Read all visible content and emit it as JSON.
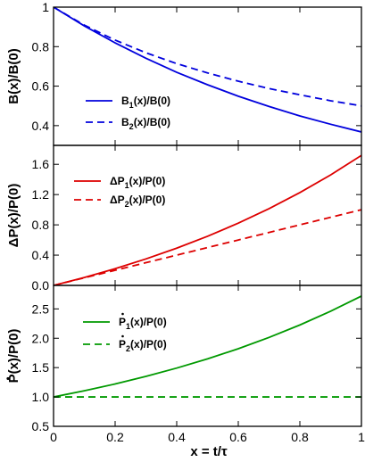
{
  "chart_data": [
    {
      "type": "line",
      "xlabel": "",
      "ylabel": "B(x)/B(0)",
      "xlim": [
        0,
        1
      ],
      "ylim": [
        0.3,
        1.0
      ],
      "yticks": [
        0.4,
        0.6,
        0.8,
        1.0
      ],
      "ytick_labels": [
        "0.4",
        "0.6",
        "0.8",
        "1"
      ],
      "legend_position": "center",
      "series": [
        {
          "name": "B1(x)/B(0)",
          "name_main": "B",
          "name_sub": "1",
          "name_rest": "(x)/B(0)",
          "color": "#0000dd",
          "dash": "solid",
          "x": [
            0,
            0.1,
            0.2,
            0.3,
            0.4,
            0.5,
            0.6,
            0.7,
            0.8,
            0.9,
            1.0
          ],
          "y": [
            1.0,
            0.905,
            0.819,
            0.741,
            0.67,
            0.607,
            0.549,
            0.497,
            0.449,
            0.407,
            0.368
          ]
        },
        {
          "name": "B2(x)/B(0)",
          "name_main": "B",
          "name_sub": "2",
          "name_rest": "(x)/B(0)",
          "color": "#0000dd",
          "dash": "dashed",
          "x": [
            0,
            0.1,
            0.2,
            0.3,
            0.4,
            0.5,
            0.6,
            0.7,
            0.8,
            0.9,
            1.0
          ],
          "y": [
            1.0,
            0.909,
            0.833,
            0.769,
            0.714,
            0.667,
            0.625,
            0.588,
            0.556,
            0.526,
            0.5
          ]
        }
      ]
    },
    {
      "type": "line",
      "xlabel": "",
      "ylabel": "ΔP(x)/P(0)",
      "xlim": [
        0,
        1
      ],
      "ylim": [
        0,
        1.85
      ],
      "yticks": [
        0,
        0.4,
        0.8,
        1.2,
        1.6
      ],
      "ytick_labels": [
        "0.0",
        "0.4",
        "0.8",
        "1.2",
        "1.6"
      ],
      "legend_position": "top-left",
      "series": [
        {
          "name": "ΔP1(x)/P(0)",
          "name_main": "ΔP",
          "name_sub": "1",
          "name_rest": "(x)/P(0)",
          "color": "#dd0000",
          "dash": "solid",
          "x": [
            0,
            0.1,
            0.2,
            0.3,
            0.4,
            0.5,
            0.6,
            0.7,
            0.8,
            0.9,
            1.0
          ],
          "y": [
            0,
            0.105,
            0.221,
            0.35,
            0.492,
            0.649,
            0.822,
            1.014,
            1.226,
            1.46,
            1.718
          ]
        },
        {
          "name": "ΔP2(x)/P(0)",
          "name_main": "ΔP",
          "name_sub": "2",
          "name_rest": "(x)/P(0)",
          "color": "#dd0000",
          "dash": "dashed",
          "x": [
            0,
            0.1,
            0.2,
            0.3,
            0.4,
            0.5,
            0.6,
            0.7,
            0.8,
            0.9,
            1.0
          ],
          "y": [
            0,
            0.1,
            0.2,
            0.3,
            0.4,
            0.5,
            0.6,
            0.7,
            0.8,
            0.9,
            1.0
          ]
        }
      ]
    },
    {
      "type": "line",
      "xlabel": "x = t/τ",
      "ylabel": "P(x)/P(0)",
      "ylabel_dot": true,
      "xlim": [
        0,
        1
      ],
      "ylim": [
        0.5,
        2.9
      ],
      "xticks": [
        0,
        0.2,
        0.4,
        0.6,
        0.8,
        1.0
      ],
      "xtick_labels": [
        "0",
        "0.2",
        "0.4",
        "0.6",
        "0.8",
        "1"
      ],
      "yticks": [
        0.5,
        1.0,
        1.5,
        2.0,
        2.5
      ],
      "ytick_labels": [
        "0.5",
        "1.0",
        "1.5",
        "2.0",
        "2.5"
      ],
      "legend_position": "top-left",
      "series": [
        {
          "name": "Ṗ1(x)/P(0)",
          "name_main": "P",
          "name_sub": "1",
          "name_rest": "(x)/P(0)",
          "name_dot": true,
          "color": "#009900",
          "dash": "solid",
          "x": [
            0,
            0.1,
            0.2,
            0.3,
            0.4,
            0.5,
            0.6,
            0.7,
            0.8,
            0.9,
            1.0
          ],
          "y": [
            1.0,
            1.105,
            1.221,
            1.35,
            1.492,
            1.649,
            1.822,
            2.014,
            2.226,
            2.46,
            2.718
          ]
        },
        {
          "name": "Ṗ2(x)/P(0)",
          "name_main": "P",
          "name_sub": "2",
          "name_rest": "(x)/P(0)",
          "name_dot": true,
          "color": "#009900",
          "dash": "dashed",
          "x": [
            0,
            0.1,
            0.2,
            0.3,
            0.4,
            0.5,
            0.6,
            0.7,
            0.8,
            0.9,
            1.0
          ],
          "y": [
            1.0,
            1.0,
            1.0,
            1.0,
            1.0,
            1.0,
            1.0,
            1.0,
            1.0,
            1.0,
            1.0
          ]
        }
      ]
    }
  ]
}
